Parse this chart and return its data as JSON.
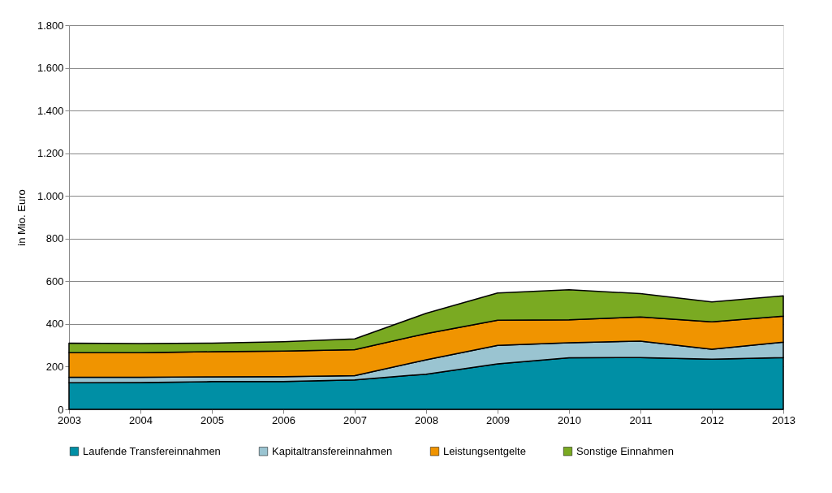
{
  "chart_data": {
    "type": "area",
    "stacked": true,
    "ylabel": "in Mio. Euro",
    "x": [
      2003,
      2004,
      2005,
      2006,
      2007,
      2008,
      2009,
      2010,
      2011,
      2012,
      2013
    ],
    "xlim": [
      2003,
      2013
    ],
    "xticks": [
      2003,
      2004,
      2005,
      2006,
      2007,
      2008,
      2009,
      2010,
      2011,
      2012,
      2013
    ],
    "ylim": [
      0,
      1800
    ],
    "yticks": [
      0,
      200,
      400,
      600,
      800,
      {
        "value": 1000,
        "label": "1.000"
      },
      {
        "value": 1200,
        "label": "1.200"
      },
      {
        "value": 1400,
        "label": "1.400"
      },
      {
        "value": 1600,
        "label": "1.600"
      },
      {
        "value": 1800,
        "label": "1.800"
      }
    ],
    "grid": "y",
    "legend": "bottom",
    "series": [
      {
        "name": "Laufende Transfereinnahmen",
        "color": "#008fa5",
        "values": [
          125,
          126,
          130,
          130,
          138,
          165,
          213,
          242,
          243,
          235,
          243
        ]
      },
      {
        "name": "Kapitaltransfereinnahmen",
        "color": "#9ac4d1",
        "values": [
          25,
          24,
          22,
          23,
          20,
          67,
          87,
          70,
          77,
          47,
          72
        ]
      },
      {
        "name": "Leistungsentgelte",
        "color": "#f09400",
        "values": [
          115,
          115,
          118,
          120,
          122,
          123,
          118,
          108,
          113,
          128,
          122
        ]
      },
      {
        "name": "Sonstige Einnahmen",
        "color": "#7aaa22",
        "values": [
          45,
          43,
          40,
          44,
          50,
          95,
          127,
          140,
          109,
          93,
          95
        ]
      }
    ]
  }
}
